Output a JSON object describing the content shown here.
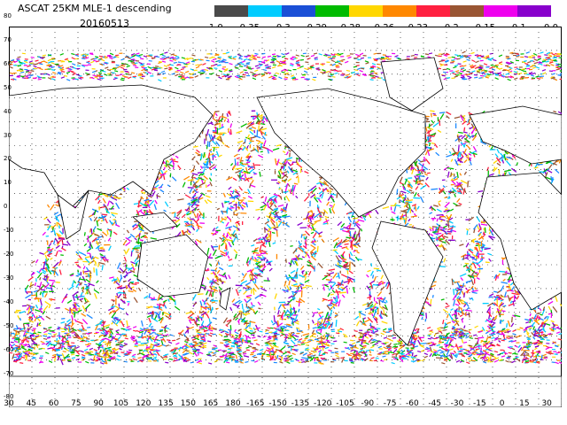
{
  "header": {
    "title": "ASCAT 25KM MLE-1 descending",
    "date": "20160513"
  },
  "colorbar": {
    "colors": [
      "#4a4a4a",
      "#00ccff",
      "#1a4fd6",
      "#00bb00",
      "#ffd700",
      "#ff8800",
      "#ff2040",
      "#995533",
      "#ee00ee",
      "#8800cc"
    ],
    "ticks": [
      "-1.0",
      "-0.35",
      "-0.3",
      "-0.29",
      "-0.28",
      "-0.26",
      "-0.23",
      "-0.2",
      "-0.15",
      "-0.1",
      "0.0"
    ]
  },
  "map": {
    "lon_labels": [
      "30",
      "45",
      "60",
      "75",
      "90",
      "105",
      "120",
      "135",
      "150",
      "165",
      "180",
      "-165",
      "-150",
      "-135",
      "-120",
      "-105",
      "-90",
      "-75",
      "-60",
      "-45",
      "-30",
      "-15",
      "0",
      "15",
      "30"
    ],
    "lat_labels": [
      "80",
      "70",
      "60",
      "50",
      "40",
      "30",
      "20",
      "10",
      "0",
      "-10",
      "-20",
      "-30",
      "-40",
      "-50",
      "-60",
      "-70",
      "-80"
    ],
    "swath_colors": [
      "#ee00ee",
      "#8800cc",
      "#1a88ff",
      "#00ccff",
      "#ff8800",
      "#ffd700",
      "#ff2040",
      "#00bb00",
      "#995533"
    ]
  }
}
